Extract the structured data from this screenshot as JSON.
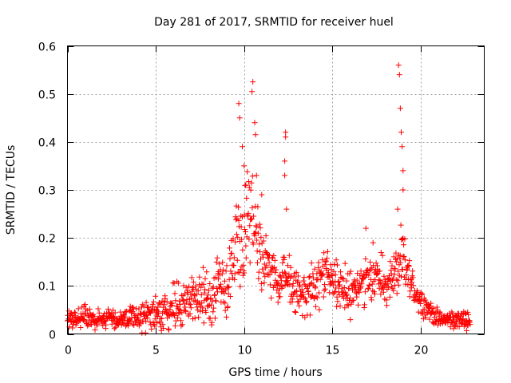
{
  "chart_data": {
    "type": "scatter",
    "title": "Day 281 of 2017, SRMTID for receiver huel",
    "xlabel": "GPS time / hours",
    "ylabel": "SRMTID / TECUs",
    "xlim": [
      0,
      23.6
    ],
    "ylim": [
      0,
      0.6
    ],
    "xticks": [
      0,
      5,
      10,
      15,
      20
    ],
    "yticks": [
      0,
      0.1,
      0.2,
      0.3,
      0.4,
      0.5,
      0.6
    ],
    "xtick_labels": [
      "0",
      "5",
      "10",
      "15",
      "20"
    ],
    "ytick_labels": [
      "0",
      "0.1",
      "0.2",
      "0.3",
      "0.4",
      "0.5",
      "0.6"
    ],
    "grid": true,
    "marker": "+",
    "series_color": "#ff0000",
    "profile_description": "approximate envelope of the dense scatter (baseline, spread) used to regenerate points; samples every 0.02 h",
    "profile": {
      "x": [
        0,
        1,
        2,
        3,
        4,
        4.5,
        5,
        6,
        7,
        8,
        9,
        9.5,
        10,
        10.5,
        11,
        11.5,
        12,
        12.5,
        13,
        13.5,
        14,
        14.5,
        15,
        15.5,
        16,
        16.5,
        17,
        17.5,
        18,
        18.5,
        19,
        19.5,
        20,
        20.5,
        21,
        22,
        22.8
      ],
      "base": [
        0.03,
        0.035,
        0.03,
        0.03,
        0.035,
        0.04,
        0.04,
        0.06,
        0.07,
        0.08,
        0.1,
        0.17,
        0.2,
        0.22,
        0.17,
        0.13,
        0.1,
        0.12,
        0.09,
        0.08,
        0.1,
        0.13,
        0.11,
        0.09,
        0.09,
        0.1,
        0.13,
        0.12,
        0.1,
        0.12,
        0.15,
        0.1,
        0.07,
        0.05,
        0.03,
        0.03,
        0.03
      ],
      "spread": [
        0.02,
        0.03,
        0.02,
        0.02,
        0.03,
        0.04,
        0.04,
        0.05,
        0.05,
        0.06,
        0.07,
        0.1,
        0.12,
        0.12,
        0.08,
        0.05,
        0.05,
        0.06,
        0.05,
        0.05,
        0.05,
        0.06,
        0.05,
        0.05,
        0.05,
        0.05,
        0.07,
        0.05,
        0.05,
        0.06,
        0.07,
        0.04,
        0.03,
        0.02,
        0.02,
        0.02,
        0.02
      ]
    },
    "spikes": [
      {
        "x": 9.7,
        "y": 0.48
      },
      {
        "x": 9.75,
        "y": 0.45
      },
      {
        "x": 9.9,
        "y": 0.39
      },
      {
        "x": 10.0,
        "y": 0.35
      },
      {
        "x": 10.1,
        "y": 0.31
      },
      {
        "x": 10.5,
        "y": 0.525
      },
      {
        "x": 10.45,
        "y": 0.505
      },
      {
        "x": 10.6,
        "y": 0.44
      },
      {
        "x": 10.65,
        "y": 0.415
      },
      {
        "x": 10.7,
        "y": 0.33
      },
      {
        "x": 11.0,
        "y": 0.29
      },
      {
        "x": 12.35,
        "y": 0.42
      },
      {
        "x": 12.35,
        "y": 0.41
      },
      {
        "x": 12.3,
        "y": 0.36
      },
      {
        "x": 12.3,
        "y": 0.33
      },
      {
        "x": 12.4,
        "y": 0.26
      },
      {
        "x": 16.9,
        "y": 0.22
      },
      {
        "x": 18.75,
        "y": 0.56
      },
      {
        "x": 18.8,
        "y": 0.54
      },
      {
        "x": 18.85,
        "y": 0.47
      },
      {
        "x": 18.9,
        "y": 0.42
      },
      {
        "x": 18.95,
        "y": 0.39
      },
      {
        "x": 19.0,
        "y": 0.34
      },
      {
        "x": 19.0,
        "y": 0.3
      },
      {
        "x": 18.7,
        "y": 0.26
      }
    ]
  }
}
